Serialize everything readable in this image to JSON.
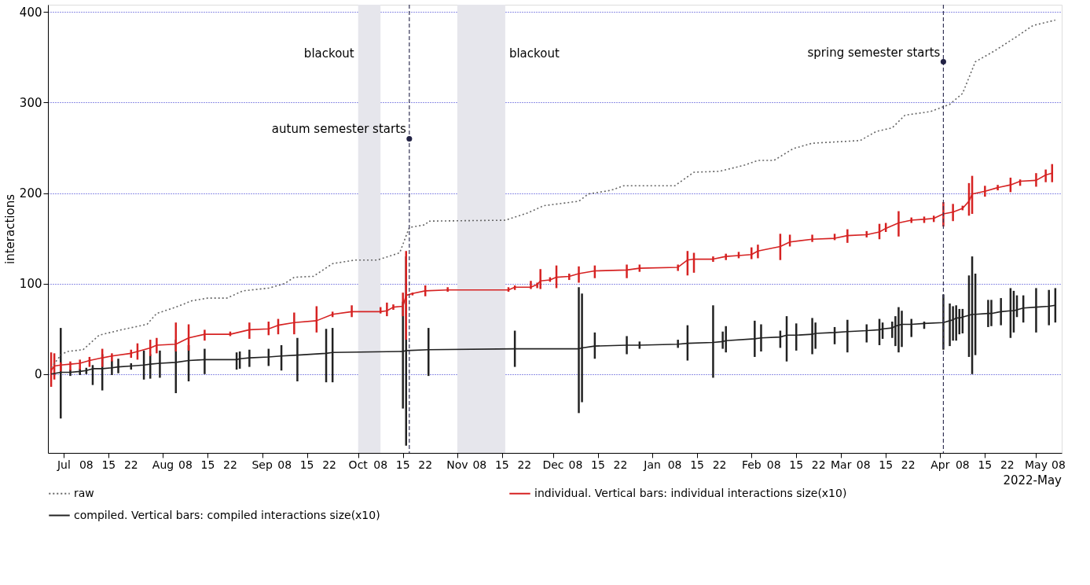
{
  "chart_data": {
    "type": "line",
    "ylabel": "interactions",
    "xlim": [
      "2021-06-26",
      "2022-05-09"
    ],
    "ylim": [
      -87,
      408
    ],
    "yticks": [
      0,
      100,
      200,
      300,
      400
    ],
    "grid": "y",
    "legend": "bottom",
    "xticks": [
      {
        "value": "2021-07-01",
        "label": "Jul"
      },
      {
        "value": "2021-07-08",
        "label": "08"
      },
      {
        "value": "2021-07-15",
        "label": "15"
      },
      {
        "value": "2021-07-22",
        "label": "22"
      },
      {
        "value": "2021-08-01",
        "label": "Aug"
      },
      {
        "value": "2021-08-08",
        "label": "08"
      },
      {
        "value": "2021-08-15",
        "label": "15"
      },
      {
        "value": "2021-08-22",
        "label": "22"
      },
      {
        "value": "2021-09-01",
        "label": "Sep"
      },
      {
        "value": "2021-09-08",
        "label": "08"
      },
      {
        "value": "2021-09-15",
        "label": "15"
      },
      {
        "value": "2021-09-22",
        "label": "22"
      },
      {
        "value": "2021-10-01",
        "label": "Oct"
      },
      {
        "value": "2021-10-08",
        "label": "08"
      },
      {
        "value": "2021-10-15",
        "label": "15"
      },
      {
        "value": "2021-10-22",
        "label": "22"
      },
      {
        "value": "2021-11-01",
        "label": "Nov"
      },
      {
        "value": "2021-11-08",
        "label": "08"
      },
      {
        "value": "2021-11-15",
        "label": "15"
      },
      {
        "value": "2021-11-22",
        "label": "22"
      },
      {
        "value": "2021-12-01",
        "label": "Dec"
      },
      {
        "value": "2021-12-08",
        "label": "08"
      },
      {
        "value": "2021-12-15",
        "label": "15"
      },
      {
        "value": "2021-12-22",
        "label": "22"
      },
      {
        "value": "2022-01-01",
        "label": "Jan"
      },
      {
        "value": "2022-01-08",
        "label": "08"
      },
      {
        "value": "2022-01-15",
        "label": "15"
      },
      {
        "value": "2022-01-22",
        "label": "22"
      },
      {
        "value": "2022-02-01",
        "label": "Feb"
      },
      {
        "value": "2022-02-08",
        "label": "08"
      },
      {
        "value": "2022-02-15",
        "label": "15"
      },
      {
        "value": "2022-02-22",
        "label": "22"
      },
      {
        "value": "2022-03-01",
        "label": "Mar"
      },
      {
        "value": "2022-03-08",
        "label": "08"
      },
      {
        "value": "2022-03-15",
        "label": "15"
      },
      {
        "value": "2022-03-22",
        "label": "22"
      },
      {
        "value": "2022-04-01",
        "label": "Apr"
      },
      {
        "value": "2022-04-08",
        "label": "08"
      },
      {
        "value": "2022-04-15",
        "label": "15"
      },
      {
        "value": "2022-04-22",
        "label": "22"
      },
      {
        "value": "2022-05-01",
        "label": "May"
      },
      {
        "value": "2022-05-08",
        "label": "08"
      }
    ],
    "bands": [
      {
        "axis": "x",
        "from": "2021-10-01",
        "to": "2021-10-08",
        "label": "blackout",
        "color": "#e6e6ec"
      },
      {
        "axis": "x",
        "from": "2021-11-01",
        "to": "2021-11-16",
        "label": "blackout",
        "color": "#e6e6ec"
      }
    ],
    "ref_lines": [
      {
        "axis": "x",
        "value": "2021-10-17",
        "color": "#333355",
        "line_style": "dashed"
      },
      {
        "axis": "x",
        "value": "2022-04-02",
        "color": "#333355",
        "line_style": "dashed"
      }
    ],
    "annotations": [
      {
        "text": "autum semester starts",
        "x": "2021-10-17",
        "y": 260
      },
      {
        "text": "spring semester starts",
        "x": "2022-04-02",
        "y": 345
      },
      "2022-May"
    ],
    "series": [
      {
        "name": "raw",
        "color": "#666666",
        "line_style": "dotted",
        "x": [
          "2021-06-27",
          "2021-06-30",
          "2021-07-02",
          "2021-07-07",
          "2021-07-12",
          "2021-07-19",
          "2021-07-27",
          "2021-07-30",
          "2021-08-05",
          "2021-08-10",
          "2021-08-15",
          "2021-08-21",
          "2021-08-26",
          "2021-09-03",
          "2021-09-08",
          "2021-09-11",
          "2021-09-17",
          "2021-09-23",
          "2021-09-30",
          "2021-10-07",
          "2021-10-14",
          "2021-10-17",
          "2021-10-22",
          "2021-10-23",
          "2021-11-16",
          "2021-11-23",
          "2021-11-28",
          "2021-12-09",
          "2021-12-12",
          "2021-12-19",
          "2021-12-23",
          "2022-01-08",
          "2022-01-14",
          "2022-01-22",
          "2022-01-30",
          "2022-02-03",
          "2022-02-08",
          "2022-02-14",
          "2022-02-20",
          "2022-03-07",
          "2022-03-12",
          "2022-03-17",
          "2022-03-21",
          "2022-03-29",
          "2022-04-04",
          "2022-04-08",
          "2022-04-12",
          "2022-04-18",
          "2022-04-25",
          "2022-04-30",
          "2022-05-07"
        ],
        "values": [
          7,
          21,
          25,
          27,
          43,
          49,
          55,
          67,
          74,
          81,
          84,
          84,
          92,
          95,
          100,
          107,
          108,
          122,
          126,
          126,
          134,
          162,
          165,
          169,
          170,
          178,
          186,
          191,
          199,
          203,
          208,
          208,
          223,
          224,
          231,
          236,
          236,
          249,
          255,
          258,
          268,
          272,
          286,
          290,
          298,
          310,
          345,
          357,
          373,
          385,
          391
        ]
      },
      {
        "name": "individual. Vertical bars: individual interactions size(x10)",
        "color": "#d62222",
        "line_style": "solid",
        "x": [
          "2021-06-27",
          "2021-06-28",
          "2021-06-30",
          "2021-07-03",
          "2021-07-06",
          "2021-07-09",
          "2021-07-13",
          "2021-07-16",
          "2021-07-22",
          "2021-07-24",
          "2021-07-28",
          "2021-07-30",
          "2021-08-05",
          "2021-08-09",
          "2021-08-14",
          "2021-08-22",
          "2021-08-28",
          "2021-09-03",
          "2021-09-06",
          "2021-09-11",
          "2021-09-18",
          "2021-09-23",
          "2021-09-29",
          "2021-10-08",
          "2021-10-10",
          "2021-10-12",
          "2021-10-15",
          "2021-10-16",
          "2021-10-18",
          "2021-10-22",
          "2021-10-29",
          "2021-11-17",
          "2021-11-19",
          "2021-11-24",
          "2021-11-26",
          "2021-11-27",
          "2021-11-30",
          "2021-12-02",
          "2021-12-06",
          "2021-12-09",
          "2021-12-14",
          "2021-12-24",
          "2021-12-28",
          "2022-01-09",
          "2022-01-12",
          "2022-01-14",
          "2022-01-20",
          "2022-01-24",
          "2022-01-28",
          "2022-02-01",
          "2022-02-03",
          "2022-02-10",
          "2022-02-13",
          "2022-02-20",
          "2022-02-27",
          "2022-03-03",
          "2022-03-09",
          "2022-03-13",
          "2022-03-15",
          "2022-03-19",
          "2022-03-23",
          "2022-03-27",
          "2022-03-30",
          "2022-04-02",
          "2022-04-05",
          "2022-04-08",
          "2022-04-10",
          "2022-04-11",
          "2022-04-15",
          "2022-04-19",
          "2022-04-23",
          "2022-04-26",
          "2022-05-01",
          "2022-05-04",
          "2022-05-06"
        ],
        "values": [
          4,
          9,
          10,
          11,
          12,
          15,
          18,
          20,
          23,
          25,
          29,
          32,
          33,
          40,
          44,
          44,
          49,
          50,
          54,
          57,
          59,
          66,
          69,
          69,
          70,
          74,
          75,
          87,
          89,
          92,
          93,
          93,
          96,
          96,
          99,
          103,
          104,
          107,
          108,
          111,
          114,
          115,
          117,
          118,
          126,
          127,
          127,
          130,
          131,
          132,
          136,
          141,
          146,
          149,
          150,
          153,
          154,
          157,
          161,
          167,
          170,
          171,
          172,
          177,
          179,
          183,
          191,
          199,
          202,
          206,
          209,
          213,
          214,
          220,
          222
        ],
        "errors": [
          [
            -14,
            24
          ],
          [
            -6,
            23
          ],
          [
            3,
            13
          ],
          [
            4,
            14
          ],
          [
            5,
            16
          ],
          [
            8,
            19
          ],
          [
            8,
            28
          ],
          [
            14,
            23
          ],
          [
            18,
            27
          ],
          [
            16,
            34
          ],
          [
            20,
            38
          ],
          [
            23,
            40
          ],
          [
            25,
            57
          ],
          [
            26,
            55
          ],
          [
            37,
            49
          ],
          [
            42,
            47
          ],
          [
            39,
            57
          ],
          [
            43,
            58
          ],
          [
            44,
            61
          ],
          [
            44,
            68
          ],
          [
            46,
            75
          ],
          [
            63,
            69
          ],
          [
            63,
            76
          ],
          [
            67,
            74
          ],
          [
            64,
            79
          ],
          [
            71,
            77
          ],
          [
            64,
            90
          ],
          [
            38,
            136
          ],
          [
            87,
            90
          ],
          [
            86,
            98
          ],
          [
            91,
            96
          ],
          [
            91,
            96
          ],
          [
            93,
            98
          ],
          [
            94,
            103
          ],
          [
            95,
            101
          ],
          [
            94,
            116
          ],
          [
            102,
            107
          ],
          [
            95,
            120
          ],
          [
            104,
            111
          ],
          [
            101,
            119
          ],
          [
            106,
            120
          ],
          [
            106,
            121
          ],
          [
            113,
            121
          ],
          [
            114,
            121
          ],
          [
            109,
            136
          ],
          [
            112,
            134
          ],
          [
            124,
            130
          ],
          [
            126,
            133
          ],
          [
            128,
            135
          ],
          [
            127,
            140
          ],
          [
            128,
            143
          ],
          [
            126,
            155
          ],
          [
            141,
            154
          ],
          [
            146,
            154
          ],
          [
            148,
            155
          ],
          [
            145,
            160
          ],
          [
            151,
            158
          ],
          [
            149,
            166
          ],
          [
            157,
            167
          ],
          [
            152,
            180
          ],
          [
            167,
            173
          ],
          [
            167,
            174
          ],
          [
            168,
            175
          ],
          [
            163,
            190
          ],
          [
            169,
            188
          ],
          [
            181,
            186
          ],
          [
            175,
            211
          ],
          [
            177,
            219
          ],
          [
            196,
            208
          ],
          [
            203,
            209
          ],
          [
            201,
            217
          ],
          [
            208,
            215
          ],
          [
            207,
            222
          ],
          [
            212,
            226
          ],
          [
            212,
            232
          ]
        ]
      },
      {
        "name": "compiled. Vertical bars: compiled interactions size(x10)",
        "color": "#222222",
        "line_style": "solid",
        "x": [
          "2021-06-27",
          "2021-06-30",
          "2021-07-03",
          "2021-07-06",
          "2021-07-08",
          "2021-07-10",
          "2021-07-13",
          "2021-07-16",
          "2021-07-18",
          "2021-07-22",
          "2021-07-26",
          "2021-07-28",
          "2021-07-31",
          "2021-08-05",
          "2021-08-09",
          "2021-08-14",
          "2021-08-24",
          "2021-08-25",
          "2021-08-28",
          "2021-09-03",
          "2021-09-07",
          "2021-09-12",
          "2021-09-21",
          "2021-09-23",
          "2021-10-15",
          "2021-10-16",
          "2021-10-23",
          "2021-11-19",
          "2021-12-09",
          "2021-12-10",
          "2021-12-14",
          "2021-12-24",
          "2021-12-28",
          "2022-01-09",
          "2022-01-12",
          "2022-01-20",
          "2022-01-23",
          "2022-01-24",
          "2022-02-02",
          "2022-02-04",
          "2022-02-10",
          "2022-02-12",
          "2022-02-15",
          "2022-02-20",
          "2022-02-21",
          "2022-02-27",
          "2022-03-03",
          "2022-03-09",
          "2022-03-13",
          "2022-03-14",
          "2022-03-17",
          "2022-03-18",
          "2022-03-19",
          "2022-03-20",
          "2022-03-23",
          "2022-03-27",
          "2022-04-02",
          "2022-04-04",
          "2022-04-05",
          "2022-04-06",
          "2022-04-07",
          "2022-04-08",
          "2022-04-10",
          "2022-04-11",
          "2022-04-12",
          "2022-04-16",
          "2022-04-17",
          "2022-04-20",
          "2022-04-23",
          "2022-04-24",
          "2022-04-25",
          "2022-04-27",
          "2022-05-01",
          "2022-05-05",
          "2022-05-07"
        ],
        "values": [
          0,
          2,
          2,
          3,
          4,
          6,
          6,
          7,
          8,
          9,
          10,
          11,
          12,
          13,
          15,
          16,
          16,
          17,
          18,
          19,
          20,
          21,
          23,
          24,
          25,
          26,
          27,
          28,
          28,
          29,
          31,
          32,
          32,
          33,
          34,
          35,
          36,
          37,
          39,
          40,
          41,
          43,
          43,
          44,
          45,
          46,
          47,
          48,
          49,
          50,
          51,
          53,
          54,
          55,
          55,
          56,
          57,
          59,
          60,
          62,
          62,
          63,
          65,
          66,
          66,
          67,
          67,
          69,
          70,
          70,
          71,
          73,
          74,
          75,
          76
        ],
        "errors": [
          null,
          [
            -49,
            51
          ],
          [
            -2,
            5
          ],
          [
            -1,
            6
          ],
          [
            0,
            7
          ],
          [
            -12,
            10
          ],
          [
            -18,
            22
          ],
          [
            -1,
            15
          ],
          [
            1,
            17
          ],
          [
            5,
            12
          ],
          [
            -6,
            26
          ],
          [
            -5,
            22
          ],
          [
            -4,
            26
          ],
          [
            -21,
            38
          ],
          [
            -8,
            32
          ],
          [
            0,
            28
          ],
          [
            5,
            24
          ],
          [
            6,
            25
          ],
          [
            8,
            27
          ],
          [
            9,
            28
          ],
          [
            4,
            32
          ],
          [
            -8,
            40
          ],
          [
            -9,
            50
          ],
          [
            -9,
            51
          ],
          [
            -38,
            80
          ],
          [
            -79,
            130
          ],
          [
            -2,
            51
          ],
          [
            8,
            48
          ],
          [
            -43,
            96
          ],
          [
            -31,
            89
          ],
          [
            17,
            46
          ],
          [
            22,
            42
          ],
          [
            28,
            36
          ],
          [
            29,
            38
          ],
          [
            15,
            54
          ],
          [
            -4,
            76
          ],
          [
            28,
            47
          ],
          [
            24,
            53
          ],
          [
            19,
            59
          ],
          [
            25,
            55
          ],
          [
            29,
            48
          ],
          [
            14,
            64
          ],
          [
            26,
            56
          ],
          [
            22,
            62
          ],
          [
            28,
            57
          ],
          [
            33,
            52
          ],
          [
            24,
            60
          ],
          [
            35,
            55
          ],
          [
            32,
            61
          ],
          [
            39,
            57
          ],
          [
            40,
            58
          ],
          [
            31,
            64
          ],
          [
            24,
            74
          ],
          [
            30,
            70
          ],
          [
            41,
            61
          ],
          [
            50,
            58
          ],
          [
            27,
            88
          ],
          [
            31,
            78
          ],
          [
            37,
            75
          ],
          [
            37,
            76
          ],
          [
            44,
            72
          ],
          [
            45,
            72
          ],
          [
            19,
            109
          ],
          [
            0,
            130
          ],
          [
            21,
            111
          ],
          [
            52,
            82
          ],
          [
            53,
            82
          ],
          [
            54,
            84
          ],
          [
            40,
            95
          ],
          [
            46,
            92
          ],
          [
            63,
            87
          ],
          [
            57,
            87
          ],
          [
            46,
            95
          ],
          [
            54,
            93
          ],
          [
            57,
            95
          ]
        ]
      }
    ]
  }
}
